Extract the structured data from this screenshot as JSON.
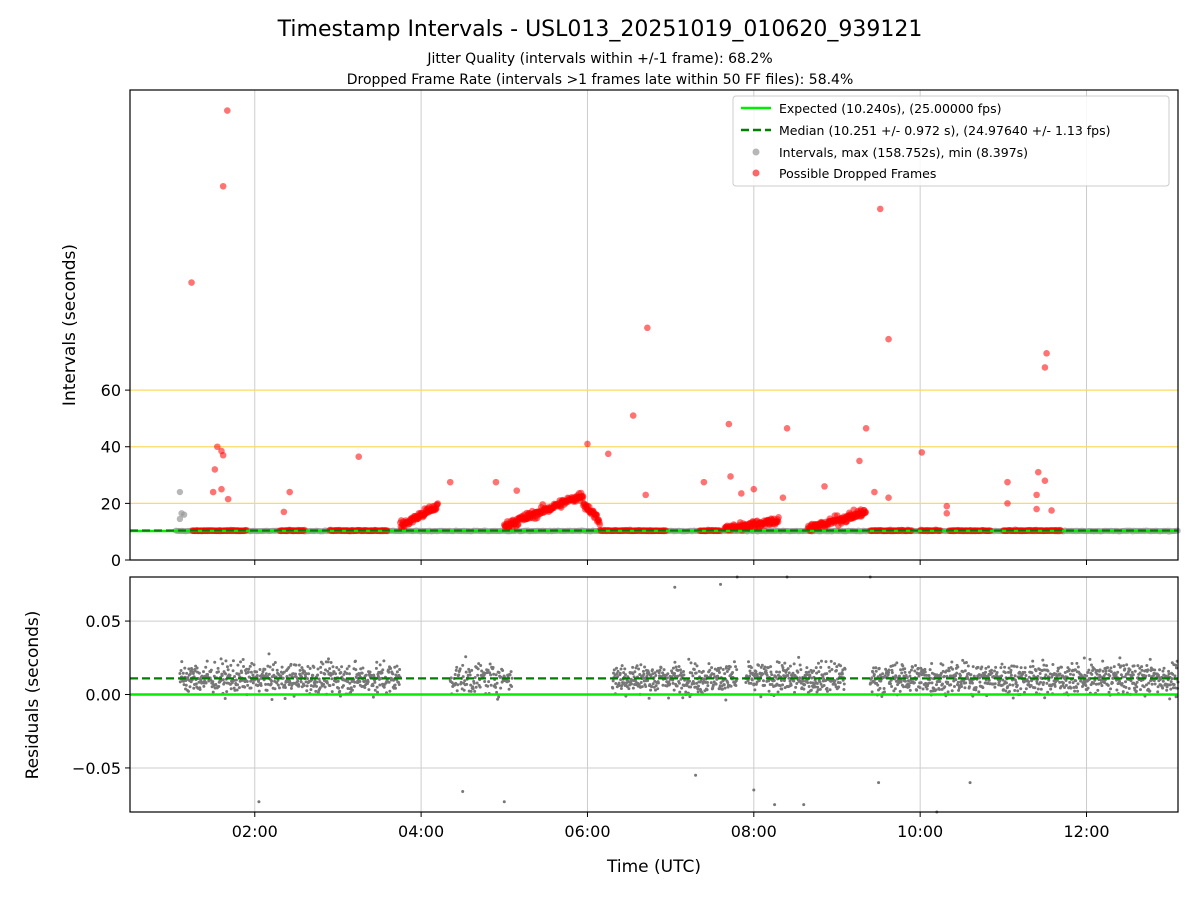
{
  "chart_data": {
    "type": "scatter",
    "title": "Timestamp Intervals - USL013_20251019_010620_939121",
    "subtitle_lines": [
      "Jitter Quality (intervals within +/-1 frame): 68.2%",
      "Dropped Frame Rate (intervals >1 frames late within 50 FF files): 58.4%"
    ],
    "xlabel": "Time (UTC)",
    "x_ticks": [
      "02:00",
      "04:00",
      "06:00",
      "08:00",
      "10:00",
      "12:00"
    ],
    "x_tick_hours": [
      2,
      4,
      6,
      8,
      10,
      12
    ],
    "xlim_hours": [
      0.5,
      13.1
    ],
    "top_panel": {
      "ylabel": "Intervals (seconds)",
      "y_ticks": [
        "0",
        "20",
        "40",
        "60"
      ],
      "y_tick_values": [
        0,
        20,
        40,
        60
      ],
      "ylim": [
        0,
        166
      ],
      "reference_lines": [
        20,
        40,
        60
      ],
      "legend": {
        "placement": "top-right",
        "entries": [
          "Expected (10.240s), (25.00000 fps)",
          "Median (10.251 +/- 0.972 s), (24.97640 +/- 1.13 fps)",
          "Intervals, max (158.752s), min (8.397s)",
          "Possible Dropped Frames"
        ]
      },
      "expected_value": 10.24,
      "median_value": 10.251,
      "dropped_outliers_xy": [
        [
          1.67,
          158.75
        ],
        [
          1.62,
          132.0
        ],
        [
          1.24,
          98.0
        ],
        [
          9.52,
          124.0
        ],
        [
          6.72,
          82.0
        ],
        [
          9.62,
          78.0
        ],
        [
          11.52,
          73.0
        ],
        [
          11.5,
          68.0
        ],
        [
          6.55,
          51.0
        ],
        [
          7.7,
          48.0
        ],
        [
          8.4,
          46.5
        ],
        [
          9.35,
          46.5
        ],
        [
          1.55,
          40.0
        ],
        [
          1.6,
          38.5
        ],
        [
          1.62,
          37.0
        ],
        [
          6.0,
          41.0
        ],
        [
          6.25,
          37.5
        ],
        [
          3.25,
          36.5
        ],
        [
          10.02,
          38.0
        ],
        [
          9.27,
          35.0
        ],
        [
          1.52,
          32.0
        ],
        [
          11.42,
          31.0
        ],
        [
          7.72,
          29.5
        ],
        [
          11.5,
          28.0
        ],
        [
          11.05,
          27.5
        ],
        [
          4.35,
          27.5
        ],
        [
          4.9,
          27.5
        ],
        [
          7.4,
          27.5
        ],
        [
          8.85,
          26.0
        ],
        [
          1.6,
          25.0
        ],
        [
          1.5,
          24.0
        ],
        [
          2.42,
          24.0
        ],
        [
          5.15,
          24.5
        ],
        [
          9.45,
          24.0
        ],
        [
          9.62,
          22.0
        ],
        [
          1.68,
          21.5
        ],
        [
          6.7,
          23.0
        ],
        [
          7.85,
          23.5
        ],
        [
          8.0,
          25.0
        ],
        [
          8.35,
          22.0
        ],
        [
          2.35,
          17.0
        ],
        [
          10.32,
          19.0
        ],
        [
          11.05,
          20.0
        ],
        [
          11.4,
          18.0
        ],
        [
          11.58,
          17.5
        ],
        [
          10.32,
          16.5
        ],
        [
          11.4,
          23.0
        ]
      ],
      "dropped_baseline_segments_hours": [
        [
          1.25,
          1.9
        ],
        [
          2.3,
          2.6
        ],
        [
          2.9,
          3.6
        ],
        [
          6.15,
          6.95
        ],
        [
          7.35,
          7.6
        ],
        [
          9.4,
          9.9
        ],
        [
          10.0,
          10.25
        ],
        [
          10.35,
          10.85
        ],
        [
          11.0,
          11.7
        ]
      ],
      "dropped_ramps": [
        {
          "x0": 3.75,
          "x1": 4.2,
          "y0": 12,
          "y1": 19
        },
        {
          "x0": 5.0,
          "x1": 5.95,
          "y0": 12,
          "y1": 23
        },
        {
          "x0": 5.95,
          "x1": 6.15,
          "y0": 20,
          "y1": 14
        },
        {
          "x0": 8.65,
          "x1": 9.35,
          "y0": 11,
          "y1": 17
        },
        {
          "x0": 7.65,
          "x1": 8.3,
          "y0": 11,
          "y1": 14
        }
      ],
      "interval_segments_hours": [
        [
          1.05,
          13.1
        ]
      ],
      "interval_extra_xy": [
        [
          1.1,
          24.0
        ],
        [
          1.12,
          16.5
        ],
        [
          1.1,
          14.5
        ],
        [
          1.15,
          16.0
        ]
      ]
    },
    "bottom_panel": {
      "ylabel": "Residuals (seconds)",
      "y_ticks": [
        "0.05",
        "0.00",
        "−0.05"
      ],
      "y_tick_values": [
        0.05,
        0.0,
        -0.05
      ],
      "ylim": [
        -0.08,
        0.08
      ],
      "median_residual": 0.011,
      "expected_residual": 0.0,
      "residual_segments_hours": [
        [
          1.1,
          3.75
        ],
        [
          4.35,
          5.1
        ],
        [
          6.3,
          7.8
        ],
        [
          7.9,
          9.1
        ],
        [
          9.4,
          13.1
        ]
      ],
      "residual_outliers_xy": [
        [
          7.8,
          0.08
        ],
        [
          8.4,
          0.08
        ],
        [
          9.4,
          0.08
        ],
        [
          8.25,
          -0.075
        ],
        [
          8.6,
          -0.075
        ],
        [
          10.2,
          -0.08
        ],
        [
          4.5,
          -0.066
        ],
        [
          5.0,
          -0.073
        ],
        [
          2.05,
          -0.073
        ],
        [
          7.3,
          -0.055
        ],
        [
          8.0,
          -0.065
        ],
        [
          9.5,
          -0.06
        ],
        [
          10.6,
          -0.06
        ],
        [
          7.05,
          0.073
        ],
        [
          7.6,
          0.075
        ]
      ]
    },
    "colors": {
      "expected": "#00ee00",
      "median": "#008000",
      "intervals": "#999999",
      "dropped": "#ff0000",
      "residuals": "#777777",
      "reference_lines": "#ffd966",
      "grid": "#cccccc"
    }
  }
}
